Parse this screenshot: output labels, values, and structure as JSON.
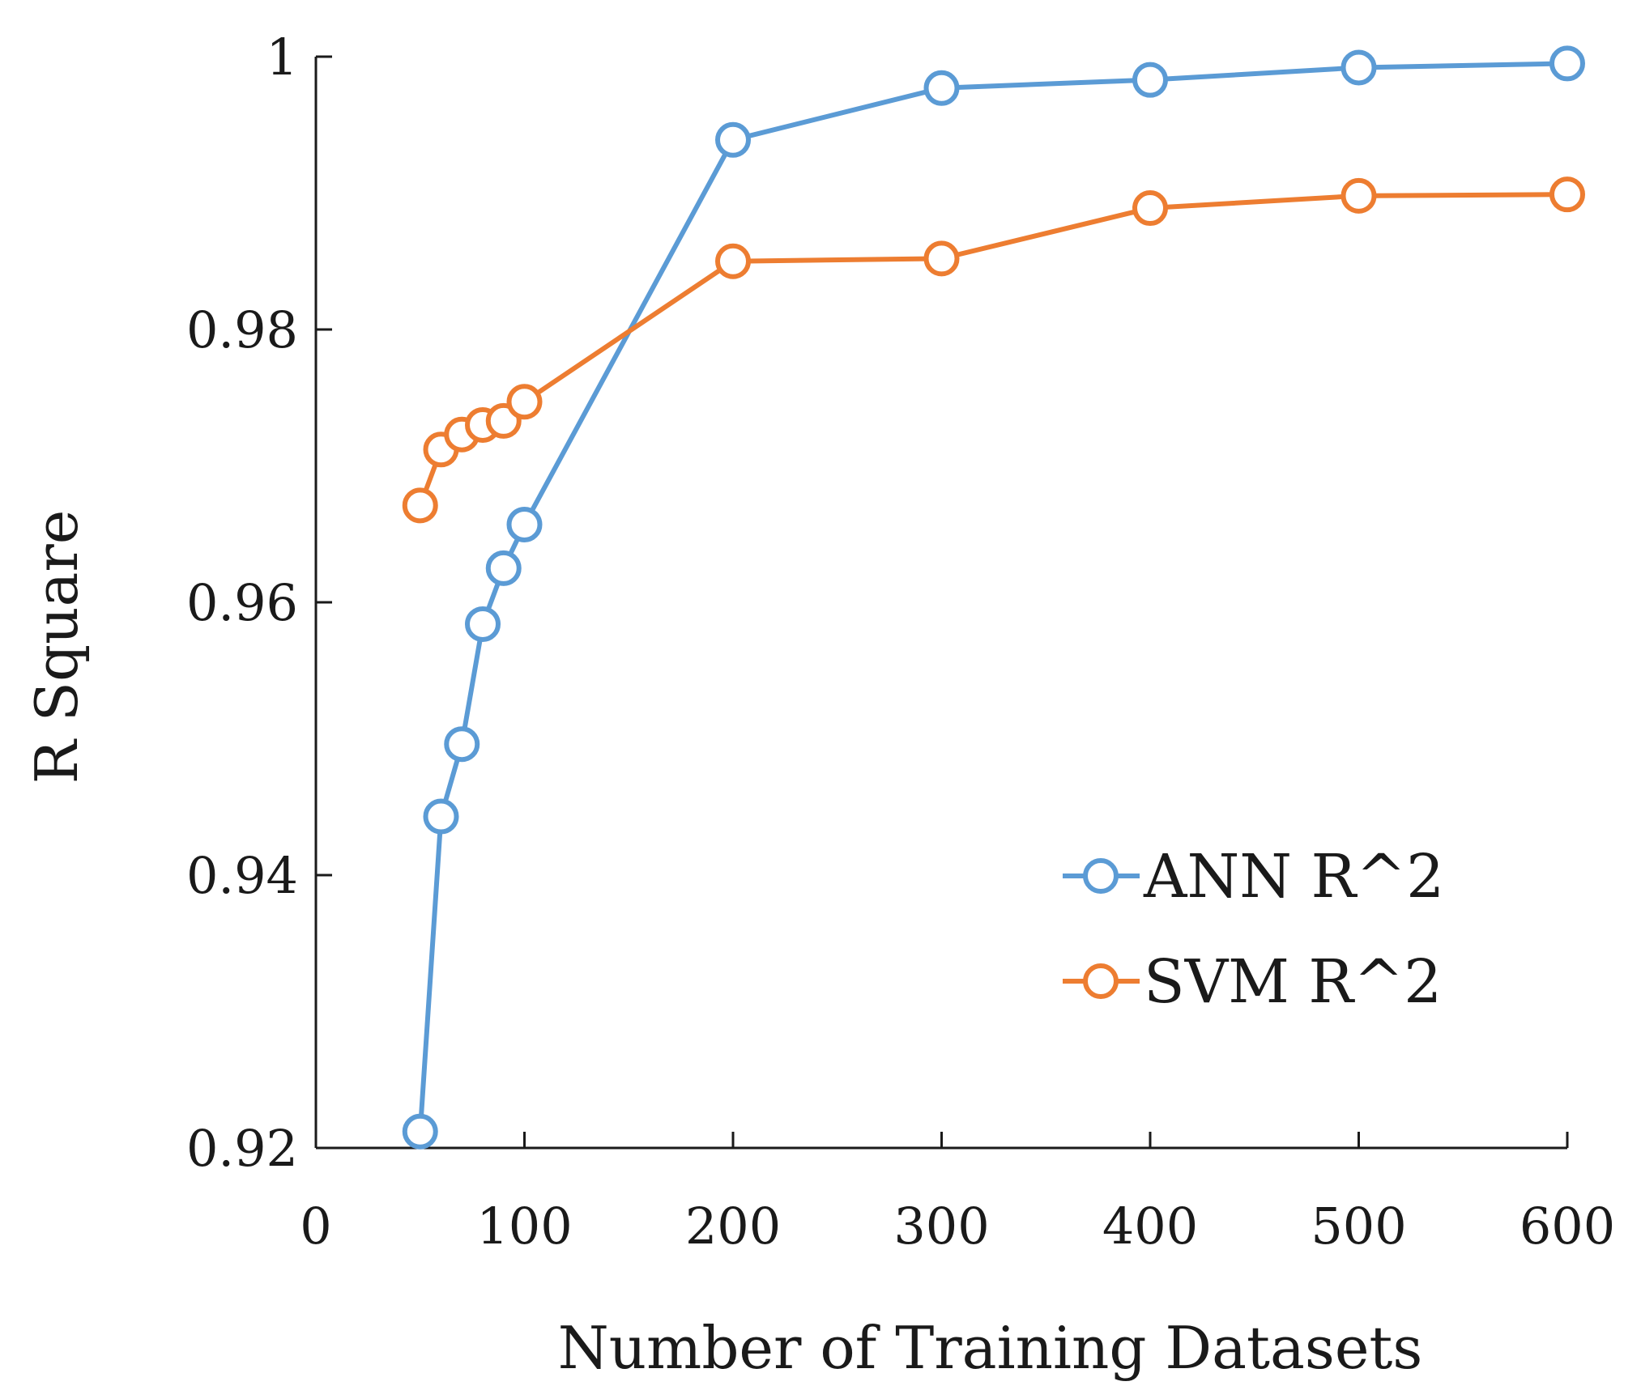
{
  "chart_data": {
    "type": "line",
    "title": "",
    "xlabel": "Number of Training Datasets",
    "ylabel": "R Square",
    "xlim": [
      0,
      600
    ],
    "ylim": [
      0.92,
      1.0
    ],
    "x_ticks": [
      0,
      100,
      200,
      300,
      400,
      500,
      600
    ],
    "x_tick_labels": [
      "0",
      "100",
      "200",
      "300",
      "400",
      "500",
      "600"
    ],
    "y_ticks": [
      0.92,
      0.94,
      0.96,
      0.98,
      1.0
    ],
    "y_tick_labels": [
      "0.92",
      "0.94",
      "0.96",
      "0.98",
      "1"
    ],
    "grid": false,
    "legend_position": "right",
    "marker": "open-circle",
    "series": [
      {
        "name": "ANN R^2",
        "color": "#5b9bd5",
        "x": [
          50,
          60,
          70,
          80,
          90,
          100,
          200,
          300,
          400,
          500,
          600
        ],
        "y": [
          0.9212,
          0.9443,
          0.9496,
          0.9584,
          0.9625,
          0.9657,
          0.9939,
          0.9977,
          0.9983,
          0.9992,
          0.9995
        ]
      },
      {
        "name": "SVM R^2",
        "color": "#ed7d31",
        "x": [
          50,
          60,
          70,
          80,
          90,
          100,
          200,
          300,
          400,
          500,
          600
        ],
        "y": [
          0.9671,
          0.9712,
          0.9723,
          0.973,
          0.9733,
          0.9747,
          0.985,
          0.9852,
          0.9889,
          0.9898,
          0.9899
        ]
      }
    ]
  }
}
